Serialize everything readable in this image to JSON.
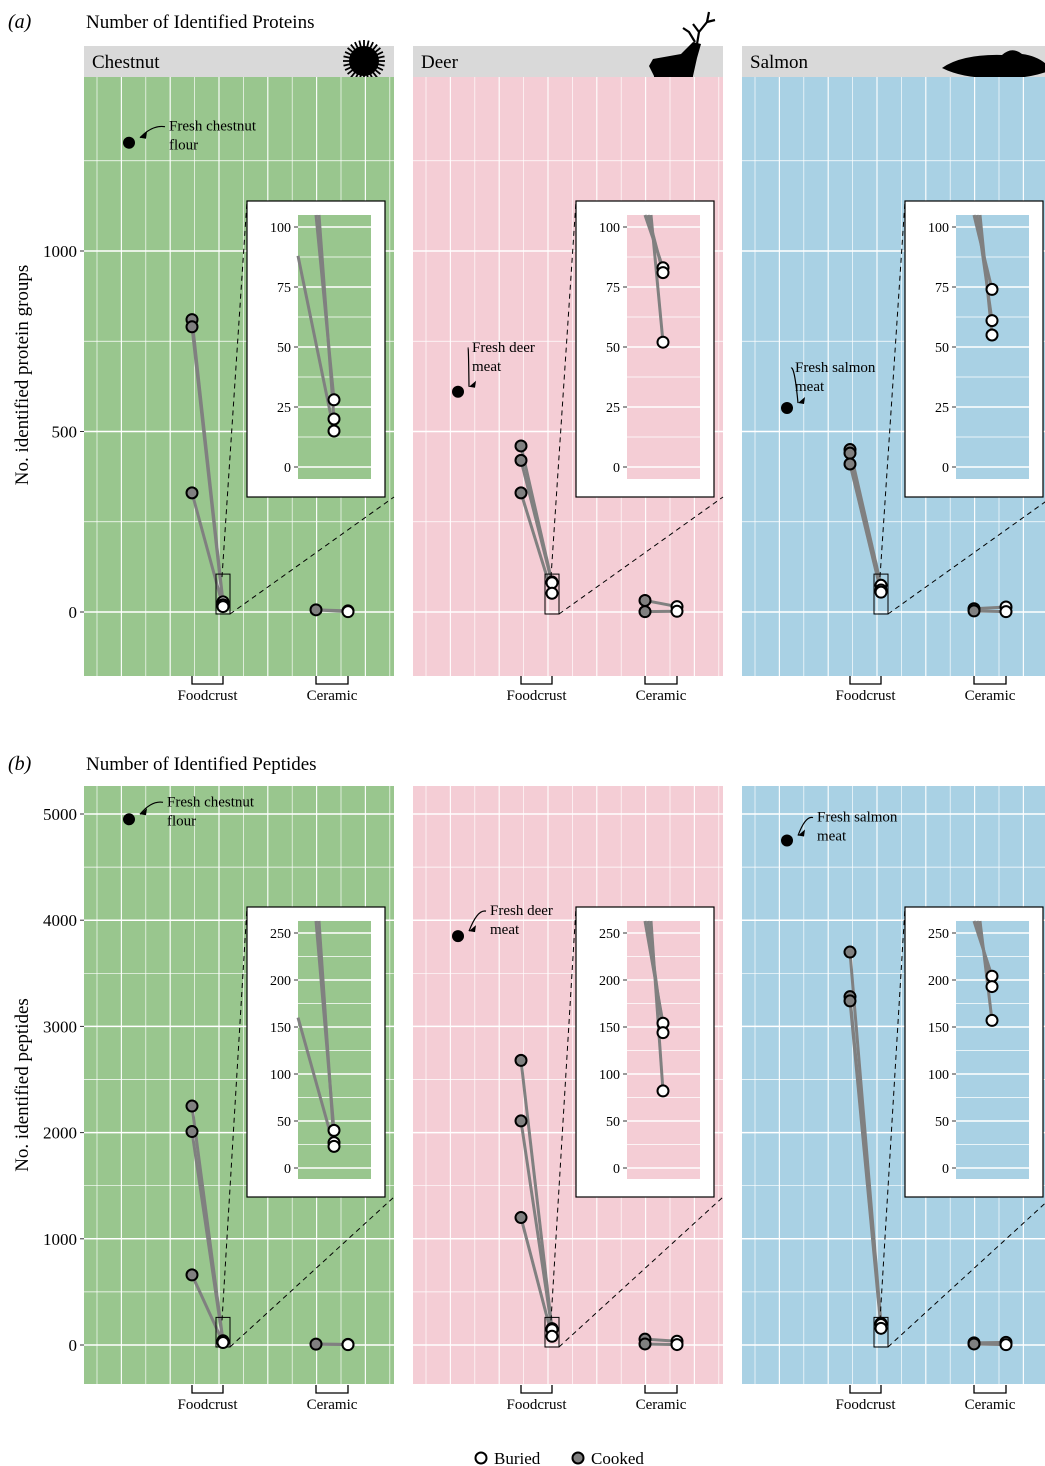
{
  "figure": {
    "panel_a": {
      "letter": "(a)",
      "title": "Number of Identified Proteins",
      "ylabel": "No. identified protein groups"
    },
    "panel_b": {
      "letter": "(b)",
      "title": "Number of Identified Peptides",
      "ylabel": "No. identified peptides"
    },
    "facets": [
      {
        "name": "Chestnut",
        "color": "#99c68e",
        "icon": "chestnut-burr-icon"
      },
      {
        "name": "Deer",
        "color": "#f4cdd5",
        "icon": "deer-icon"
      },
      {
        "name": "Salmon",
        "color": "#a9d1e4",
        "icon": "salmon-icon"
      }
    ],
    "x_groups": [
      "Foodcrust",
      "Ceramic"
    ],
    "legend": [
      {
        "label": "Buried",
        "fill": "#ffffff"
      },
      {
        "label": "Cooked",
        "fill": "#808080"
      }
    ]
  },
  "chart_data": [
    {
      "type": "scatter",
      "title": "Number of Identified Proteins",
      "ylabel": "No. identified protein groups",
      "ylim": [
        -170,
        1480
      ],
      "yticks": [
        0,
        500,
        1000
      ],
      "inset_ylim": [
        -10,
        105
      ],
      "inset_yticks": [
        0,
        25,
        50,
        75,
        100
      ],
      "panels": [
        {
          "facet": "Chestnut",
          "fresh": {
            "value": 1300,
            "label": [
              "Fresh chestnut",
              "flour"
            ]
          },
          "foodcrust": {
            "cooked": [
              810,
              790,
              330
            ],
            "buried": [
              28,
              20,
              15
            ]
          },
          "ceramic": {
            "cooked": [
              6
            ],
            "buried": [
              3,
              1
            ]
          }
        },
        {
          "facet": "Deer",
          "fresh": {
            "value": 610,
            "label": [
              "Fresh deer",
              "meat"
            ]
          },
          "foodcrust": {
            "cooked": [
              460,
              420,
              330
            ],
            "buried": [
              83,
              81,
              52
            ]
          },
          "ceramic": {
            "cooked": [
              32,
              1
            ],
            "buried": [
              15,
              2
            ]
          }
        },
        {
          "facet": "Salmon",
          "fresh": {
            "value": 565,
            "label": [
              "Fresh salmon",
              "meat"
            ]
          },
          "foodcrust": {
            "cooked": [
              450,
              440,
              410
            ],
            "buried": [
              74,
              61,
              55
            ]
          },
          "ceramic": {
            "cooked": [
              9,
              3
            ],
            "buried": [
              14,
              1
            ]
          }
        }
      ]
    },
    {
      "type": "scatter",
      "title": "Number of Identified Peptides",
      "ylabel": "No. identified peptides",
      "ylim": [
        -370,
        5280
      ],
      "yticks": [
        0,
        1000,
        2000,
        3000,
        4000,
        5000
      ],
      "inset_ylim": [
        -10,
        260
      ],
      "inset_yticks": [
        0,
        50,
        100,
        150,
        200,
        250
      ],
      "panels": [
        {
          "facet": "Chestnut",
          "fresh": {
            "value": 4950,
            "label": [
              "Fresh chestnut",
              "flour"
            ]
          },
          "foodcrust": {
            "cooked": [
              2250,
              2010,
              660
            ],
            "buried": [
              40,
              27,
              23
            ]
          },
          "ceramic": {
            "cooked": [
              8
            ],
            "buried": [
              6,
              3
            ]
          }
        },
        {
          "facet": "Deer",
          "fresh": {
            "value": 3850,
            "label": [
              "Fresh deer",
              "meat"
            ]
          },
          "foodcrust": {
            "cooked": [
              2680,
              2110,
              1200
            ],
            "buried": [
              154,
              144,
              82
            ]
          },
          "ceramic": {
            "cooked": [
              55,
              10
            ],
            "buried": [
              35,
              4
            ]
          }
        },
        {
          "facet": "Salmon",
          "fresh": {
            "value": 4750,
            "label": [
              "Fresh salmon",
              "meat"
            ]
          },
          "foodcrust": {
            "cooked": [
              3700,
              3280,
              3240
            ],
            "buried": [
              204,
              193,
              157
            ]
          },
          "ceramic": {
            "cooked": [
              20,
              10
            ],
            "buried": [
              25,
              3
            ]
          }
        }
      ]
    }
  ]
}
